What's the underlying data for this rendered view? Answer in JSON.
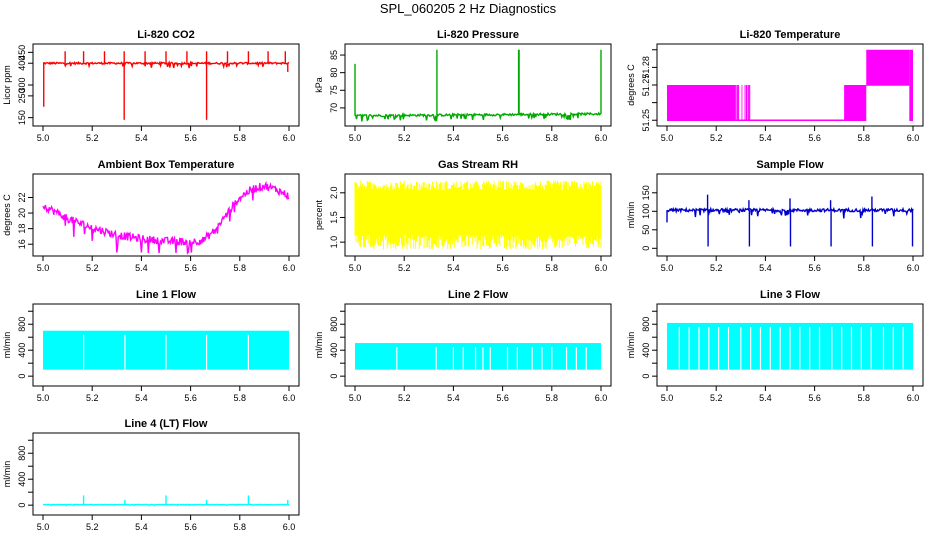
{
  "page": {
    "title": "SPL_060205  2 Hz Diagnostics"
  },
  "chart_data": [
    {
      "id": "co2",
      "type": "line",
      "title": "Li-820 CO2",
      "ylabel": "Licor ppm",
      "color": "#ff0000",
      "xlim": [
        5.0,
        6.0
      ],
      "xticks": [
        5.0,
        5.2,
        5.4,
        5.6,
        5.8,
        6.0
      ],
      "xtick_labels": [
        "5.0",
        "5.2",
        "5.4",
        "5.6",
        "5.8",
        "6.0"
      ],
      "ylim": [
        130,
        470
      ],
      "yticks": [
        150,
        250,
        300,
        400,
        450
      ],
      "ytick_labels": [
        "150",
        "250",
        "300",
        "400",
        "450"
      ],
      "series": [
        {
          "name": "CO2",
          "base": 400,
          "noise": 4,
          "x": [
            5.0,
            6.0
          ],
          "y": [
            400,
            400
          ],
          "spikes": [
            {
              "x": 5.003,
              "y": 200
            },
            {
              "x": 5.09,
              "y": 455
            },
            {
              "x": 5.165,
              "y": 455
            },
            {
              "x": 5.25,
              "y": 455
            },
            {
              "x": 5.33,
              "y": 140
            },
            {
              "x": 5.33,
              "y": 455
            },
            {
              "x": 5.415,
              "y": 455
            },
            {
              "x": 5.5,
              "y": 455
            },
            {
              "x": 5.585,
              "y": 455
            },
            {
              "x": 5.665,
              "y": 140
            },
            {
              "x": 5.665,
              "y": 455
            },
            {
              "x": 5.75,
              "y": 455
            },
            {
              "x": 5.835,
              "y": 455
            },
            {
              "x": 5.915,
              "y": 455
            },
            {
              "x": 5.985,
              "y": 455
            },
            {
              "x": 5.995,
              "y": 360
            }
          ]
        }
      ]
    },
    {
      "id": "pressure",
      "type": "line",
      "title": "Li-820 Pressure",
      "ylabel": "kPa",
      "color": "#00aa00",
      "xlim": [
        5.0,
        6.0
      ],
      "xticks": [
        5.0,
        5.2,
        5.4,
        5.6,
        5.8,
        6.0
      ],
      "xtick_labels": [
        "5.0",
        "5.2",
        "5.4",
        "5.6",
        "5.8",
        "6.0"
      ],
      "ylim": [
        66,
        87
      ],
      "yticks": [
        70,
        75,
        80,
        85
      ],
      "ytick_labels": [
        "70",
        "75",
        "80",
        "85"
      ],
      "series": [
        {
          "name": "Pressure",
          "base": 67.8,
          "noise": 0.3,
          "x": [
            5.0,
            6.0
          ],
          "y": [
            67.8,
            68.3
          ],
          "spikes": [
            {
              "x": 5.0,
              "y": 82.5
            },
            {
              "x": 5.333,
              "y": 86.5
            },
            {
              "x": 5.665,
              "y": 86.5
            },
            {
              "x": 5.667,
              "y": 86.5
            },
            {
              "x": 6.0,
              "y": 86.5
            }
          ]
        }
      ]
    },
    {
      "id": "temperature",
      "type": "line",
      "title": "Li-820 Temperature",
      "ylabel": "degrees C",
      "color": "#ff00ff",
      "xlim": [
        5.0,
        6.0
      ],
      "xticks": [
        5.0,
        5.2,
        5.4,
        5.6,
        5.8,
        6.0
      ],
      "xtick_labels": [
        "5.0",
        "5.2",
        "5.4",
        "5.6",
        "5.8",
        "6.0"
      ],
      "ylim": [
        51.249,
        51.291
      ],
      "yticks": [
        51.25,
        51.26,
        51.27,
        51.28,
        51.29
      ],
      "ytick_labels": [
        "51.25",
        "",
        "51.27",
        "51.28",
        ""
      ],
      "levels": [
        51.25,
        51.27,
        51.29
      ],
      "segments": [
        {
          "x0": 5.0,
          "x1": 5.28,
          "lo": 51.25,
          "hi": 51.27
        },
        {
          "x0": 5.28,
          "x1": 5.72,
          "lo": 51.25,
          "hi": 51.25
        },
        {
          "x0": 5.72,
          "x1": 5.81,
          "lo": 51.25,
          "hi": 51.27
        },
        {
          "x0": 5.81,
          "x1": 5.985,
          "lo": 51.27,
          "hi": 51.29
        },
        {
          "x0": 5.985,
          "x1": 6.0,
          "lo": 51.25,
          "hi": 51.29
        }
      ]
    },
    {
      "id": "ambient",
      "type": "line",
      "title": "Ambient Box Temperature",
      "ylabel": "degrees C",
      "color": "#ff00ff",
      "xlim": [
        5.0,
        6.0
      ],
      "xticks": [
        5.0,
        5.2,
        5.4,
        5.6,
        5.8,
        6.0
      ],
      "xtick_labels": [
        "5.0",
        "5.2",
        "5.4",
        "5.6",
        "5.8",
        "6.0"
      ],
      "ylim": [
        15,
        24.5
      ],
      "yticks": [
        16,
        18,
        20,
        22
      ],
      "ytick_labels": [
        "16",
        "18",
        "20",
        "22"
      ],
      "series": [
        {
          "name": "Ambient",
          "noise": 0.5,
          "x": [
            5.0,
            5.1,
            5.2,
            5.3,
            5.4,
            5.5,
            5.6,
            5.65,
            5.7,
            5.75,
            5.8,
            5.85,
            5.9,
            5.95,
            6.0
          ],
          "y": [
            21.0,
            19.3,
            18.1,
            17.2,
            16.7,
            16.4,
            16.3,
            16.5,
            17.8,
            20.0,
            22.0,
            23.1,
            23.5,
            23.0,
            22.2
          ]
        }
      ]
    },
    {
      "id": "rh",
      "type": "line",
      "title": "Gas Stream RH",
      "ylabel": "percent",
      "color": "#ffff00",
      "xlim": [
        5.0,
        6.0
      ],
      "xticks": [
        5.0,
        5.2,
        5.4,
        5.6,
        5.8,
        6.0
      ],
      "xtick_labels": [
        "5.0",
        "5.2",
        "5.4",
        "5.6",
        "5.8",
        "6.0"
      ],
      "ylim": [
        0.8,
        2.3
      ],
      "yticks": [
        1.0,
        1.5,
        2.0
      ],
      "ytick_labels": [
        "1.0",
        "1.5",
        "2.0"
      ],
      "band": {
        "lo": 1.15,
        "hi": 2.05,
        "min": 0.85,
        "max": 2.25
      }
    },
    {
      "id": "sample_flow",
      "type": "line",
      "title": "Sample Flow",
      "ylabel": "ml/min",
      "color": "#0000cc",
      "xlim": [
        5.0,
        6.0
      ],
      "xticks": [
        5.0,
        5.2,
        5.4,
        5.6,
        5.8,
        6.0
      ],
      "xtick_labels": [
        "5.0",
        "5.2",
        "5.4",
        "5.6",
        "5.8",
        "6.0"
      ],
      "ylim": [
        -10,
        190
      ],
      "yticks": [
        0,
        50,
        100,
        150
      ],
      "ytick_labels": [
        "0",
        "50",
        "100",
        "150"
      ],
      "series": [
        {
          "name": "Sample",
          "base": 103,
          "noise": 4,
          "x": [
            5.0,
            6.0
          ],
          "y": [
            103,
            103
          ],
          "spikes": [
            {
              "x": 5.0,
              "y": 70
            },
            {
              "x": 5.165,
              "y": 145
            },
            {
              "x": 5.167,
              "y": 5
            },
            {
              "x": 5.333,
              "y": 130
            },
            {
              "x": 5.335,
              "y": 5
            },
            {
              "x": 5.5,
              "y": 135
            },
            {
              "x": 5.502,
              "y": 5
            },
            {
              "x": 5.665,
              "y": 130
            },
            {
              "x": 5.667,
              "y": 5
            },
            {
              "x": 5.833,
              "y": 140
            },
            {
              "x": 5.835,
              "y": 5
            },
            {
              "x": 5.998,
              "y": 5
            }
          ]
        }
      ]
    },
    {
      "id": "line1",
      "type": "line",
      "title": "Line 1 Flow",
      "ylabel": "ml/min",
      "color": "#00ffff",
      "xlim": [
        5.0,
        6.0
      ],
      "xticks": [
        5.0,
        5.2,
        5.4,
        5.6,
        5.8,
        6.0
      ],
      "xtick_labels": [
        "5.0",
        "5.2",
        "5.4",
        "5.6",
        "5.8",
        "6.0"
      ],
      "ylim": [
        -90,
        1050
      ],
      "yticks": [
        0,
        400,
        800
      ],
      "ytick_labels": [
        "0",
        "400",
        "800"
      ],
      "minor_yticks": [
        200,
        600,
        1000
      ],
      "band": {
        "lo": 100,
        "hi": 700,
        "gaps": [
          5.165,
          5.333,
          5.5,
          5.665,
          5.835
        ]
      }
    },
    {
      "id": "line2",
      "type": "line",
      "title": "Line 2 Flow",
      "ylabel": "ml/min",
      "color": "#00ffff",
      "xlim": [
        5.0,
        6.0
      ],
      "xticks": [
        5.0,
        5.2,
        5.4,
        5.6,
        5.8,
        6.0
      ],
      "xtick_labels": [
        "5.0",
        "5.2",
        "5.4",
        "5.6",
        "5.8",
        "6.0"
      ],
      "ylim": [
        -90,
        1050
      ],
      "yticks": [
        0,
        400,
        800
      ],
      "ytick_labels": [
        "0",
        "400",
        "800"
      ],
      "minor_yticks": [
        200,
        600,
        1000
      ],
      "band": {
        "lo": 100,
        "hi": 510,
        "gaps": [
          5.17,
          5.33,
          5.4,
          5.44,
          5.49,
          5.52,
          5.55,
          5.62,
          5.66,
          5.72,
          5.76,
          5.8,
          5.86,
          5.9,
          5.94
        ]
      }
    },
    {
      "id": "line3",
      "type": "line",
      "title": "Line 3 Flow",
      "ylabel": "ml/min",
      "color": "#00ffff",
      "xlim": [
        5.0,
        6.0
      ],
      "xticks": [
        5.0,
        5.2,
        5.4,
        5.6,
        5.8,
        6.0
      ],
      "xtick_labels": [
        "5.0",
        "5.2",
        "5.4",
        "5.6",
        "5.8",
        "6.0"
      ],
      "ylim": [
        -90,
        1050
      ],
      "yticks": [
        0,
        400,
        800
      ],
      "ytick_labels": [
        "0",
        "400",
        "800"
      ],
      "minor_yticks": [
        200,
        600,
        1000
      ],
      "band": {
        "lo": 100,
        "hi": 820,
        "gaps": [
          5.05,
          5.09,
          5.13,
          5.17,
          5.21,
          5.25,
          5.3,
          5.34,
          5.38,
          5.42,
          5.46,
          5.5,
          5.54,
          5.58,
          5.62,
          5.67,
          5.71,
          5.75,
          5.79,
          5.83,
          5.88,
          5.92,
          5.96
        ]
      }
    },
    {
      "id": "line4",
      "type": "line",
      "title": "Line 4 (LT) Flow",
      "ylabel": "ml/min",
      "color": "#00ffff",
      "xlim": [
        5.0,
        6.0
      ],
      "xticks": [
        5.0,
        5.2,
        5.4,
        5.6,
        5.8,
        6.0
      ],
      "xtick_labels": [
        "5.0",
        "5.2",
        "5.4",
        "5.6",
        "5.8",
        "6.0"
      ],
      "ylim": [
        -90,
        1050
      ],
      "yticks": [
        0,
        400,
        800
      ],
      "ytick_labels": [
        "0",
        "400",
        "800"
      ],
      "minor_yticks": [
        200,
        600,
        1000
      ],
      "series": [
        {
          "name": "Line4",
          "base": 8,
          "noise": 3,
          "x": [
            5.0,
            6.0
          ],
          "y": [
            8,
            8
          ],
          "spikes": [
            {
              "x": 5.165,
              "y": 150
            },
            {
              "x": 5.333,
              "y": 80
            },
            {
              "x": 5.5,
              "y": 150
            },
            {
              "x": 5.665,
              "y": 80
            },
            {
              "x": 5.835,
              "y": 150
            },
            {
              "x": 5.995,
              "y": 80
            }
          ]
        }
      ]
    }
  ]
}
